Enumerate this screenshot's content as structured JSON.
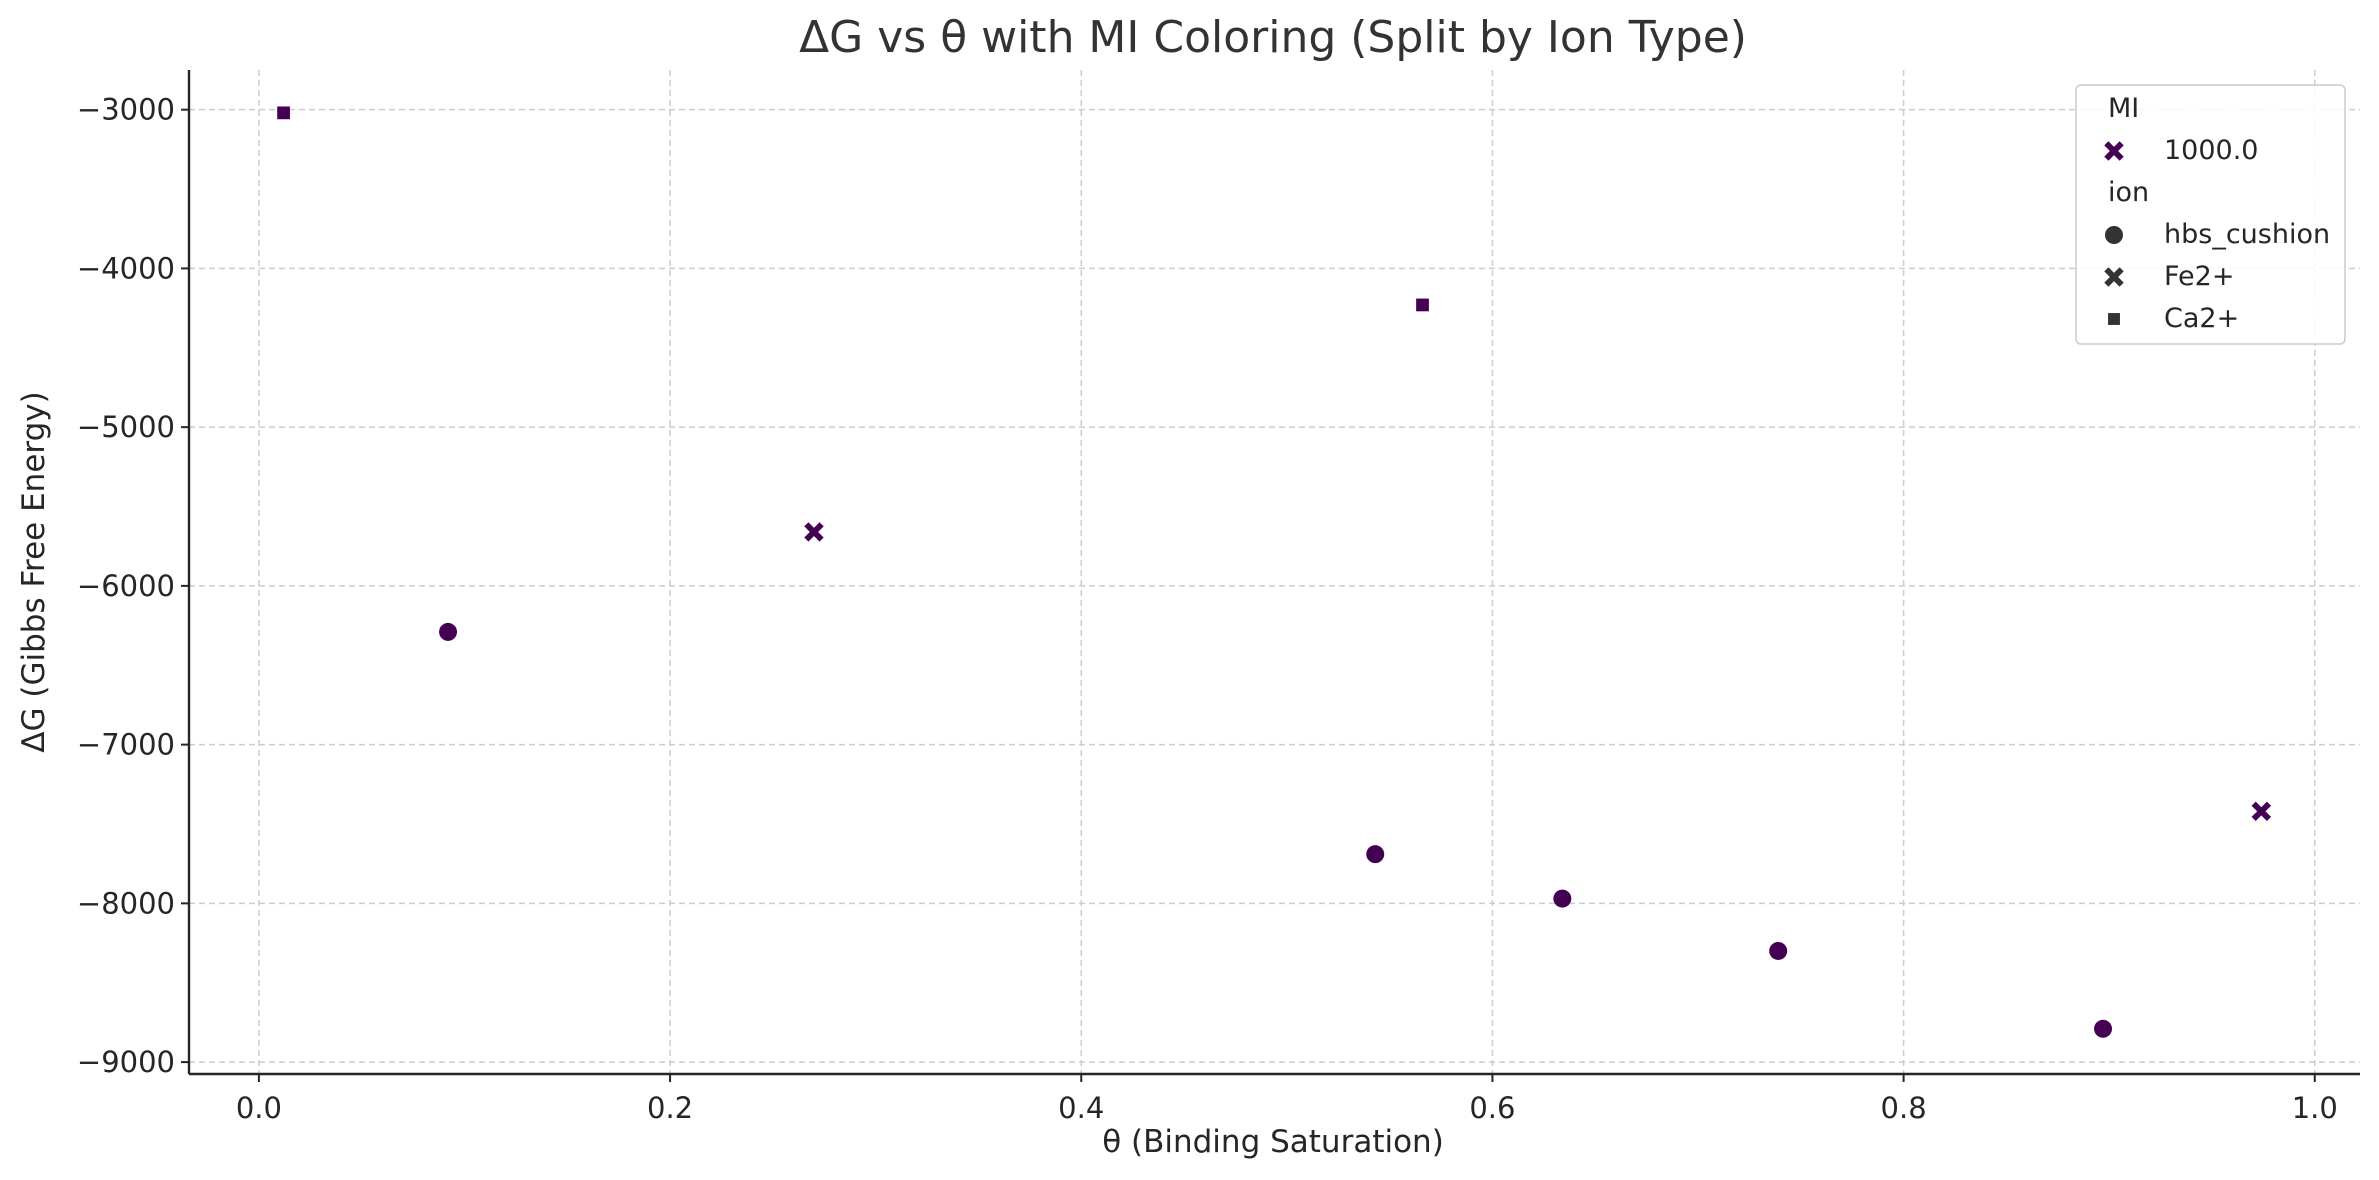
{
  "chart_data": {
    "type": "scatter",
    "title": "ΔG vs θ with MI Coloring (Split by Ion Type)",
    "xlabel": "θ (Binding Saturation)",
    "ylabel": "ΔG (Gibbs Free Energy)",
    "xlim": [
      -0.034,
      1.022
    ],
    "ylim": [
      -9075,
      -2750
    ],
    "xticks": [
      0.0,
      0.2,
      0.4,
      0.6,
      0.8,
      1.0
    ],
    "xtick_labels": [
      "0.0",
      "0.2",
      "0.4",
      "0.6",
      "0.8",
      "1.0"
    ],
    "yticks": [
      -3000,
      -4000,
      -5000,
      -6000,
      -7000,
      -8000,
      -9000
    ],
    "ytick_labels": [
      "−3000",
      "−4000",
      "−5000",
      "−6000",
      "−7000",
      "−8000",
      "−9000"
    ],
    "grid": true,
    "marker_color": "#440154",
    "series": [
      {
        "name": "hbs_cushion",
        "marker": "circle",
        "points": [
          [
            0.092,
            -6290
          ],
          [
            0.543,
            -7690
          ],
          [
            0.634,
            -7970
          ],
          [
            0.739,
            -8300
          ],
          [
            0.897,
            -8790
          ]
        ]
      },
      {
        "name": "Fe2+",
        "marker": "x",
        "points": [
          [
            0.27,
            -5660
          ],
          [
            0.974,
            -7420
          ]
        ]
      },
      {
        "name": "Ca2+",
        "marker": "square",
        "points": [
          [
            0.012,
            -3020
          ],
          [
            0.566,
            -4230
          ]
        ]
      }
    ],
    "legend": {
      "placement": "top-right",
      "hue_title": "MI",
      "hue_entries": [
        {
          "label": "1000.0",
          "marker": "x",
          "color": "#440154"
        }
      ],
      "style_title": "ion",
      "style_entries": [
        {
          "label": "hbs_cushion",
          "marker": "circle",
          "color": "#333333"
        },
        {
          "label": "Fe2+",
          "marker": "x",
          "color": "#333333"
        },
        {
          "label": "Ca2+",
          "marker": "square",
          "color": "#333333"
        }
      ]
    }
  }
}
